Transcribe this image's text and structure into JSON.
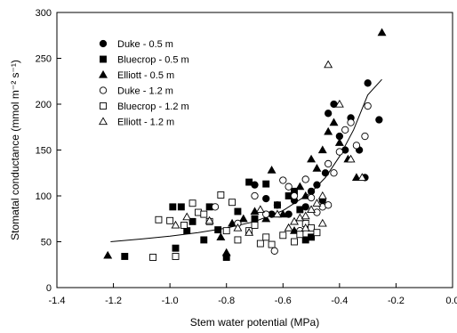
{
  "chart_data": {
    "type": "scatter",
    "title": "",
    "xlabel": "Stem water potential (MPa)",
    "ylabel": "Stomatal conductance (mmol m⁻² s⁻¹)",
    "xlim": [
      -1.4,
      0.0
    ],
    "ylim": [
      0,
      300
    ],
    "x_ticks": [
      "-1.4",
      "-1.2",
      "-1.0",
      "-0.8",
      "-0.6",
      "-0.4",
      "-0.2",
      "0.0"
    ],
    "y_ticks": [
      "0",
      "50",
      "100",
      "150",
      "200",
      "250",
      "300"
    ],
    "grid": false,
    "legend_position": "top-left",
    "series": [
      {
        "name": "Duke - 0.5 m",
        "marker": "circle-filled",
        "points": [
          [
            -0.66,
            97
          ],
          [
            -0.62,
            90
          ],
          [
            -0.58,
            80
          ],
          [
            -0.56,
            95
          ],
          [
            -0.52,
            88
          ],
          [
            -0.5,
            105
          ],
          [
            -0.48,
            112
          ],
          [
            -0.46,
            95
          ],
          [
            -0.45,
            125
          ],
          [
            -0.44,
            190
          ],
          [
            -0.42,
            200
          ],
          [
            -0.4,
            165
          ],
          [
            -0.38,
            150
          ],
          [
            -0.36,
            185
          ],
          [
            -0.33,
            150
          ],
          [
            -0.31,
            120
          ],
          [
            -0.3,
            223
          ],
          [
            -0.26,
            183
          ],
          [
            -0.7,
            112
          ],
          [
            -0.64,
            80
          ]
        ]
      },
      {
        "name": "Bluecrop - 0.5 m",
        "marker": "square-filled",
        "points": [
          [
            -1.16,
            34
          ],
          [
            -0.99,
            88
          ],
          [
            -0.96,
            88
          ],
          [
            -0.92,
            72
          ],
          [
            -0.88,
            52
          ],
          [
            -0.86,
            88
          ],
          [
            -0.83,
            63
          ],
          [
            -0.8,
            33
          ],
          [
            -0.76,
            83
          ],
          [
            -0.72,
            115
          ],
          [
            -0.7,
            75
          ],
          [
            -0.66,
            113
          ],
          [
            -0.62,
            90
          ],
          [
            -0.58,
            100
          ],
          [
            -0.56,
            105
          ],
          [
            -0.54,
            85
          ],
          [
            -0.52,
            52
          ],
          [
            -0.5,
            55
          ],
          [
            -0.98,
            43
          ],
          [
            -0.94,
            62
          ]
        ]
      },
      {
        "name": "Elliott - 0.5 m",
        "marker": "triangle-filled",
        "points": [
          [
            -1.22,
            35
          ],
          [
            -0.8,
            38
          ],
          [
            -0.78,
            70
          ],
          [
            -0.74,
            75
          ],
          [
            -0.7,
            83
          ],
          [
            -0.66,
            75
          ],
          [
            -0.64,
            128
          ],
          [
            -0.6,
            80
          ],
          [
            -0.58,
            65
          ],
          [
            -0.54,
            110
          ],
          [
            -0.52,
            100
          ],
          [
            -0.5,
            140
          ],
          [
            -0.48,
            130
          ],
          [
            -0.46,
            150
          ],
          [
            -0.44,
            170
          ],
          [
            -0.42,
            180
          ],
          [
            -0.4,
            158
          ],
          [
            -0.37,
            140
          ],
          [
            -0.34,
            120
          ],
          [
            -0.25,
            278
          ],
          [
            -0.82,
            55
          ],
          [
            -0.56,
            62
          ]
        ]
      },
      {
        "name": "Duke - 1.2 m",
        "marker": "circle-open",
        "points": [
          [
            -0.84,
            88
          ],
          [
            -0.76,
            70
          ],
          [
            -0.7,
            100
          ],
          [
            -0.66,
            80
          ],
          [
            -0.63,
            40
          ],
          [
            -0.6,
            117
          ],
          [
            -0.58,
            110
          ],
          [
            -0.56,
            100
          ],
          [
            -0.54,
            62
          ],
          [
            -0.52,
            118
          ],
          [
            -0.5,
            98
          ],
          [
            -0.48,
            82
          ],
          [
            -0.46,
            88
          ],
          [
            -0.44,
            90
          ],
          [
            -0.42,
            125
          ],
          [
            -0.4,
            148
          ],
          [
            -0.38,
            172
          ],
          [
            -0.36,
            180
          ],
          [
            -0.34,
            155
          ],
          [
            -0.31,
            165
          ],
          [
            -0.3,
            198
          ],
          [
            -0.44,
            135
          ]
        ]
      },
      {
        "name": "Bluecrop - 1.2 m",
        "marker": "square-open",
        "points": [
          [
            -1.06,
            33
          ],
          [
            -1.04,
            74
          ],
          [
            -1.0,
            73
          ],
          [
            -0.98,
            34
          ],
          [
            -0.95,
            68
          ],
          [
            -0.92,
            92
          ],
          [
            -0.9,
            82
          ],
          [
            -0.88,
            80
          ],
          [
            -0.86,
            72
          ],
          [
            -0.82,
            101
          ],
          [
            -0.8,
            62
          ],
          [
            -0.78,
            93
          ],
          [
            -0.76,
            52
          ],
          [
            -0.72,
            62
          ],
          [
            -0.7,
            68
          ],
          [
            -0.68,
            48
          ],
          [
            -0.66,
            55
          ],
          [
            -0.64,
            47
          ],
          [
            -0.6,
            57
          ],
          [
            -0.56,
            50
          ],
          [
            -0.54,
            58
          ],
          [
            -0.52,
            70
          ],
          [
            -0.5,
            65
          ],
          [
            -0.48,
            60
          ]
        ]
      },
      {
        "name": "Elliott - 1.2 m",
        "marker": "triangle-open",
        "points": [
          [
            -0.98,
            68
          ],
          [
            -0.94,
            77
          ],
          [
            -0.86,
            73
          ],
          [
            -0.76,
            65
          ],
          [
            -0.72,
            60
          ],
          [
            -0.68,
            85
          ],
          [
            -0.62,
            80
          ],
          [
            -0.58,
            65
          ],
          [
            -0.56,
            72
          ],
          [
            -0.54,
            76
          ],
          [
            -0.52,
            78
          ],
          [
            -0.5,
            85
          ],
          [
            -0.48,
            92
          ],
          [
            -0.46,
            100
          ],
          [
            -0.44,
            243
          ],
          [
            -0.4,
            200
          ],
          [
            -0.36,
            140
          ],
          [
            -0.32,
            120
          ],
          [
            -0.46,
            70
          ],
          [
            -0.52,
            65
          ]
        ]
      }
    ],
    "fit_curve": {
      "type": "exponential",
      "x": [
        -1.21,
        -1.1,
        -1.0,
        -0.9,
        -0.8,
        -0.7,
        -0.6,
        -0.5,
        -0.45,
        -0.4,
        -0.35,
        -0.3,
        -0.25
      ],
      "y": [
        50,
        53,
        56,
        60,
        65,
        72,
        84,
        104,
        120,
        143,
        172,
        210,
        227
      ]
    }
  }
}
